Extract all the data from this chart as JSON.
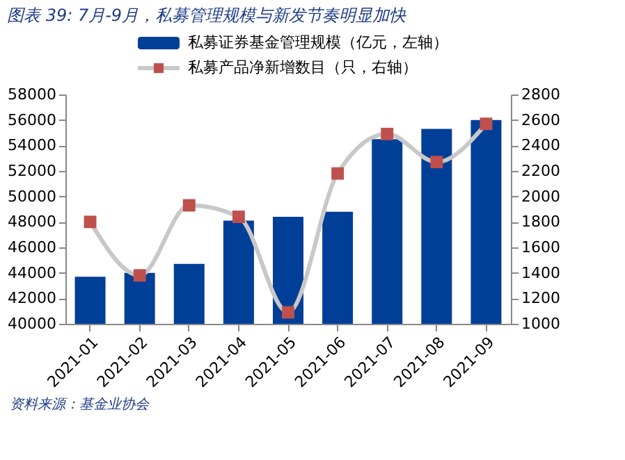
{
  "chart_data": {
    "type": "bar",
    "title": "图表 39: 7月-9月，私募管理规模与新发节奏明显加快",
    "categories": [
      "2021-01",
      "2021-02",
      "2021-03",
      "2021-04",
      "2021-05",
      "2021-06",
      "2021-07",
      "2021-08",
      "2021-09"
    ],
    "series": [
      {
        "name": "私募证券基金管理规模（亿元，左轴）",
        "color": "#003f98",
        "values": [
          43700,
          44000,
          44700,
          48100,
          48400,
          48800,
          54500,
          55300,
          56000
        ]
      },
      {
        "name": "私募产品净新增数目（只，右轴）",
        "type": "line",
        "axis": "y2",
        "marker": "square",
        "color": "#c0504d",
        "values": [
          1800,
          1380,
          1930,
          1840,
          1090,
          2180,
          2490,
          2270,
          2570
        ]
      }
    ],
    "ylim": [
      40000,
      58000
    ],
    "yticks": [
      40000,
      42000,
      44000,
      46000,
      48000,
      50000,
      52000,
      54000,
      56000,
      58000
    ],
    "y2lim": [
      1000,
      2800
    ],
    "y2ticks": [
      1000,
      1200,
      1400,
      1600,
      1800,
      2000,
      2200,
      2400,
      2600,
      2800
    ],
    "grid": false,
    "legend": "top",
    "annotations": [
      "资料来源：基金业协会"
    ]
  }
}
